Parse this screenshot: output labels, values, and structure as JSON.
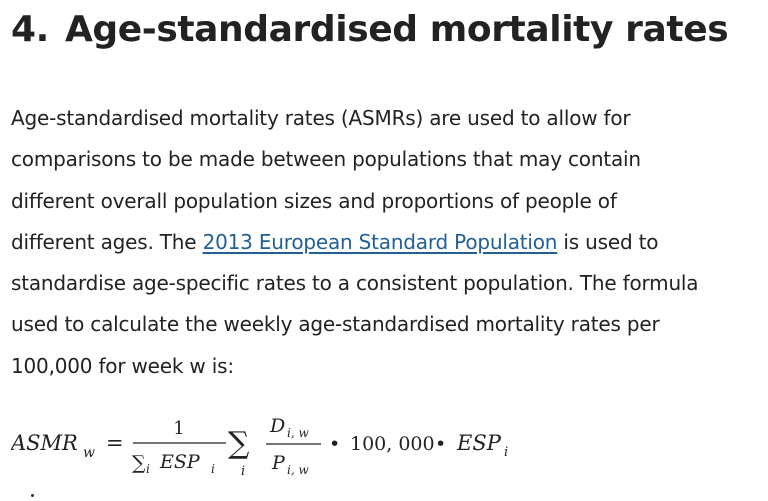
{
  "heading": {
    "number": "4.",
    "title": "Age-standardised mortality rates"
  },
  "paragraph": {
    "line1": "Age-standardised mortality rates (ASMRs) are used to allow for",
    "line2": "comparisons to be made between populations that may contain",
    "line3": "different overall population sizes and proportions of people of",
    "line4_before_link": "different ages. The ",
    "link_text": "2013 European Standard Population",
    "line4_after_link": " is used to",
    "line5": "standardise age-specific rates to a consistent population. The formula",
    "line6": "used to calculate the weekly age-standardised mortality rates per",
    "line7": "100,000 for week w is:"
  },
  "formula": {
    "lhs": "ASMR",
    "lhs_sub": "w",
    "equals": "=",
    "frac1_num": "1",
    "sigma": "∑",
    "frac1_den_sub": "i",
    "frac1_den": "ESP",
    "frac1_den_esp_sub": "i",
    "sum_sub": "i",
    "frac2_num": "D",
    "frac2_num_sub": "i, w",
    "frac2_den": "P",
    "frac2_den_sub": "i, w",
    "bullet": "•",
    "constant": "100, 000",
    "rhs_esp": "ESP",
    "rhs_esp_sub": "i"
  },
  "colors": {
    "text": "#222222",
    "link": "#206095"
  }
}
